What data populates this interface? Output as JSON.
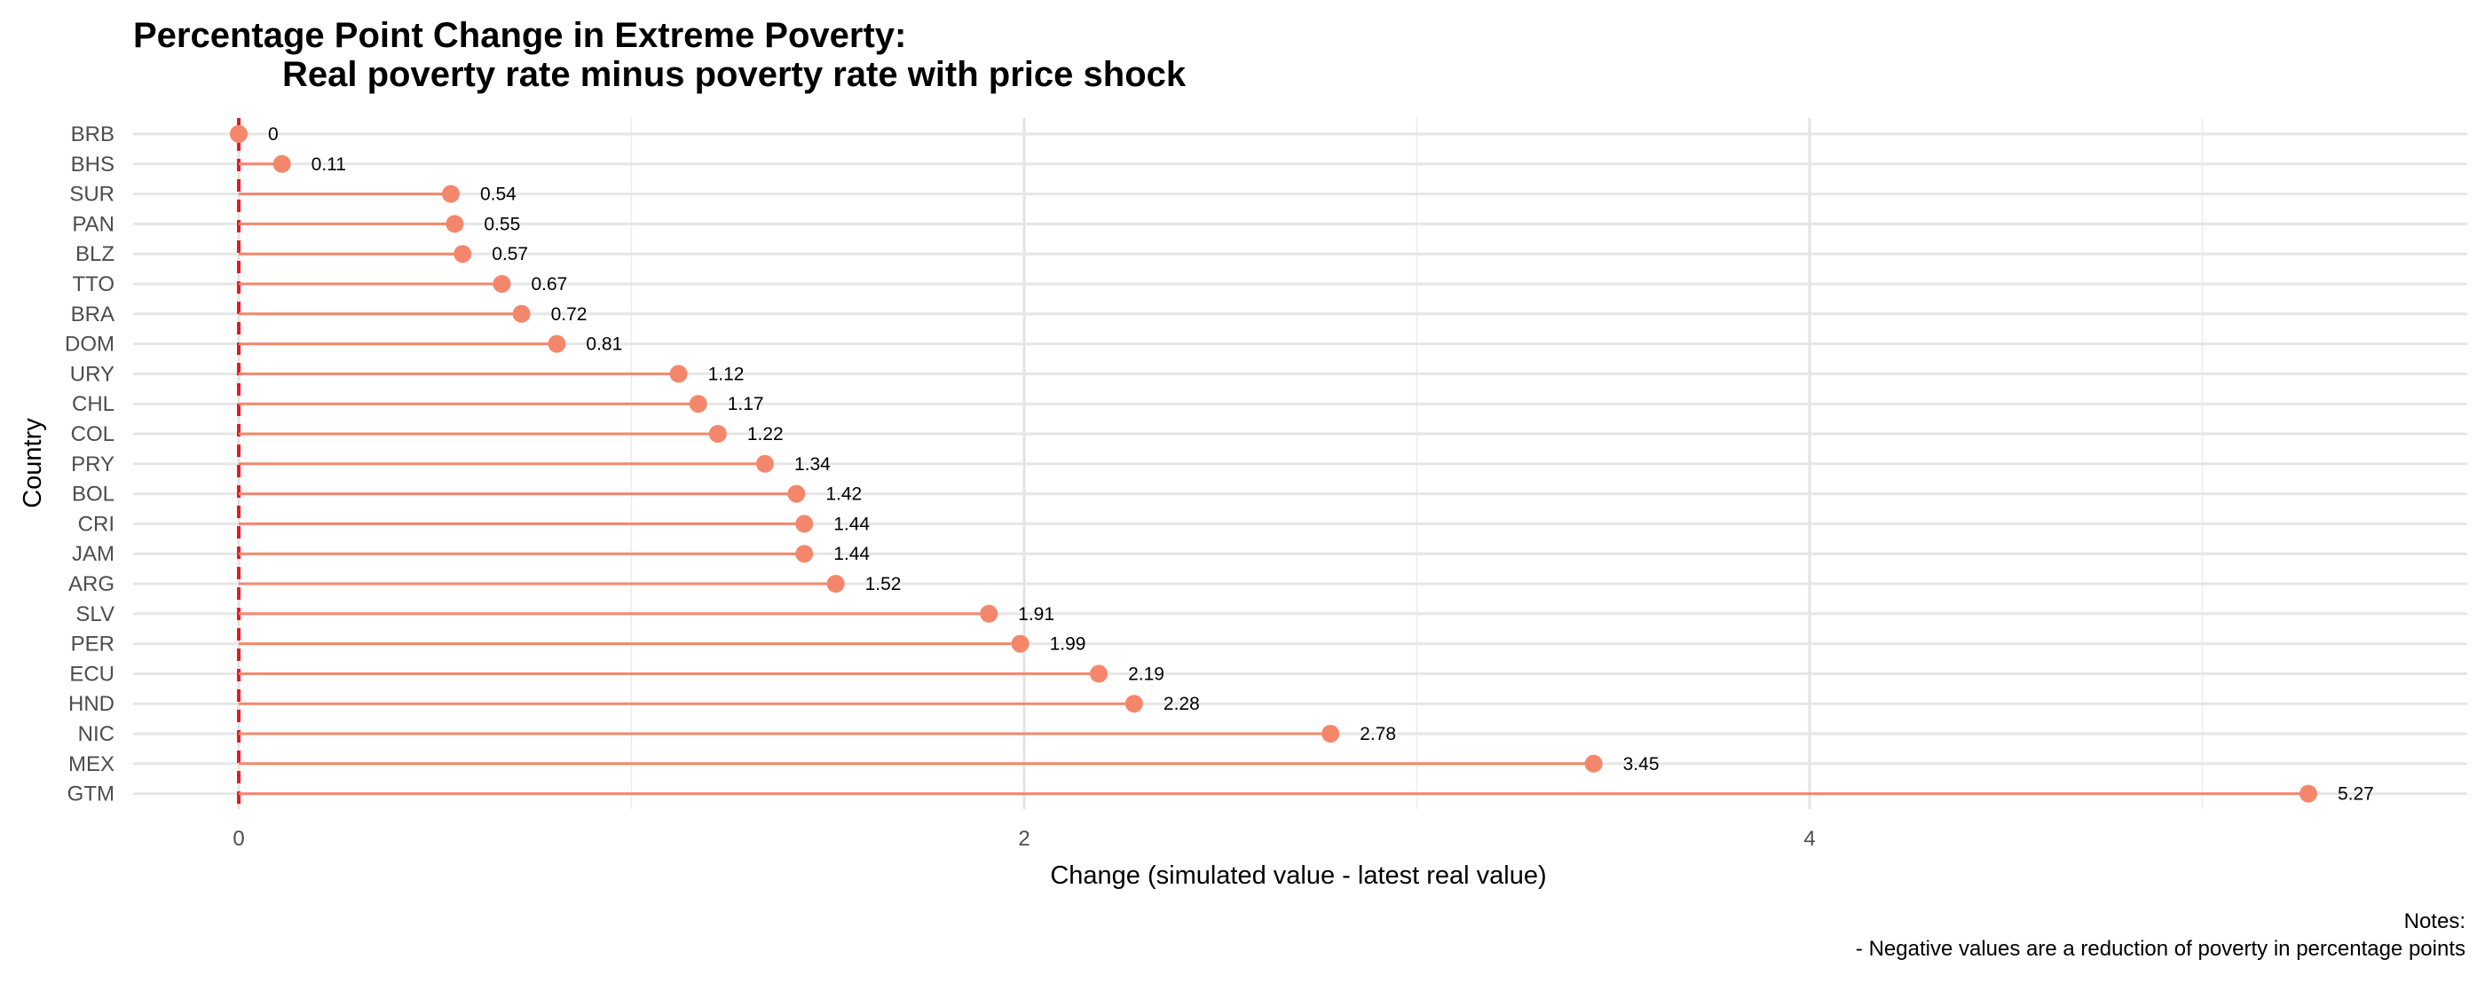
{
  "chart_data": {
    "type": "lollipop",
    "title_line1": "Percentage Point Change in Extreme Poverty:",
    "title_line2": "Real poverty rate minus poverty rate with price shock",
    "xlabel": "Change (simulated value - latest real value)",
    "ylabel": "Country",
    "xlim": [
      -0.27,
      5.6
    ],
    "x_ticks": [
      "0",
      "2",
      "4"
    ],
    "x_tick_values": [
      0,
      2,
      4
    ],
    "reference_line": {
      "x": 0,
      "style": "dashed",
      "color": "#e8191e"
    },
    "grid": true,
    "color": "#f4876b",
    "categories": [
      "BRB",
      "BHS",
      "SUR",
      "PAN",
      "BLZ",
      "TTO",
      "BRA",
      "DOM",
      "URY",
      "CHL",
      "COL",
      "PRY",
      "BOL",
      "CRI",
      "JAM",
      "ARG",
      "SLV",
      "PER",
      "ECU",
      "HND",
      "NIC",
      "MEX",
      "GTM"
    ],
    "values": [
      0,
      0.11,
      0.54,
      0.55,
      0.57,
      0.67,
      0.72,
      0.81,
      1.12,
      1.17,
      1.22,
      1.34,
      1.42,
      1.44,
      1.44,
      1.52,
      1.91,
      1.99,
      2.19,
      2.28,
      2.78,
      3.45,
      5.27
    ],
    "labels": [
      "0",
      "0.11",
      "0.54",
      "0.55",
      "0.57",
      "0.67",
      "0.72",
      "0.81",
      "1.12",
      "1.17",
      "1.22",
      "1.34",
      "1.42",
      "1.44",
      "1.44",
      "1.52",
      "1.91",
      "1.99",
      "2.19",
      "2.28",
      "2.78",
      "3.45",
      "5.27"
    ],
    "notes": [
      "Notes:",
      "- Negative values are a reduction of poverty in percentage points"
    ]
  }
}
